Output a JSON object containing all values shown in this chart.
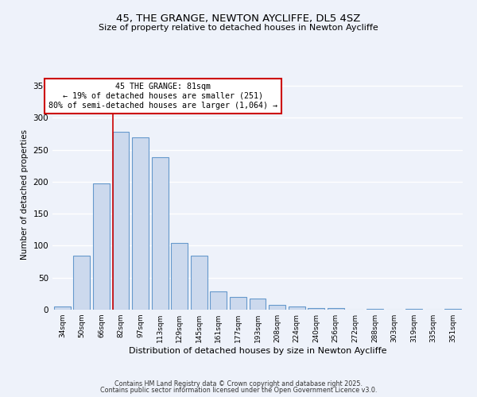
{
  "title": "45, THE GRANGE, NEWTON AYCLIFFE, DL5 4SZ",
  "subtitle": "Size of property relative to detached houses in Newton Aycliffe",
  "xlabel": "Distribution of detached houses by size in Newton Aycliffe",
  "ylabel": "Number of detached properties",
  "bar_labels": [
    "34sqm",
    "50sqm",
    "66sqm",
    "82sqm",
    "97sqm",
    "113sqm",
    "129sqm",
    "145sqm",
    "161sqm",
    "177sqm",
    "193sqm",
    "208sqm",
    "224sqm",
    "240sqm",
    "256sqm",
    "272sqm",
    "288sqm",
    "303sqm",
    "319sqm",
    "335sqm",
    "351sqm"
  ],
  "bar_values": [
    5,
    84,
    197,
    278,
    270,
    238,
    104,
    84,
    28,
    20,
    17,
    8,
    5,
    3,
    2,
    0,
    1,
    0,
    1,
    0,
    1
  ],
  "bar_color": "#ccd9ed",
  "bar_edge_color": "#6699cc",
  "background_color": "#eef2fa",
  "grid_color": "#ffffff",
  "ylim": [
    0,
    360
  ],
  "yticks": [
    0,
    50,
    100,
    150,
    200,
    250,
    300,
    350
  ],
  "marker_line_color": "#cc0000",
  "annotation_line1": "45 THE GRANGE: 81sqm",
  "annotation_line2": "← 19% of detached houses are smaller (251)",
  "annotation_line3": "80% of semi-detached houses are larger (1,064) →",
  "footnote1": "Contains HM Land Registry data © Crown copyright and database right 2025.",
  "footnote2": "Contains public sector information licensed under the Open Government Licence v3.0."
}
